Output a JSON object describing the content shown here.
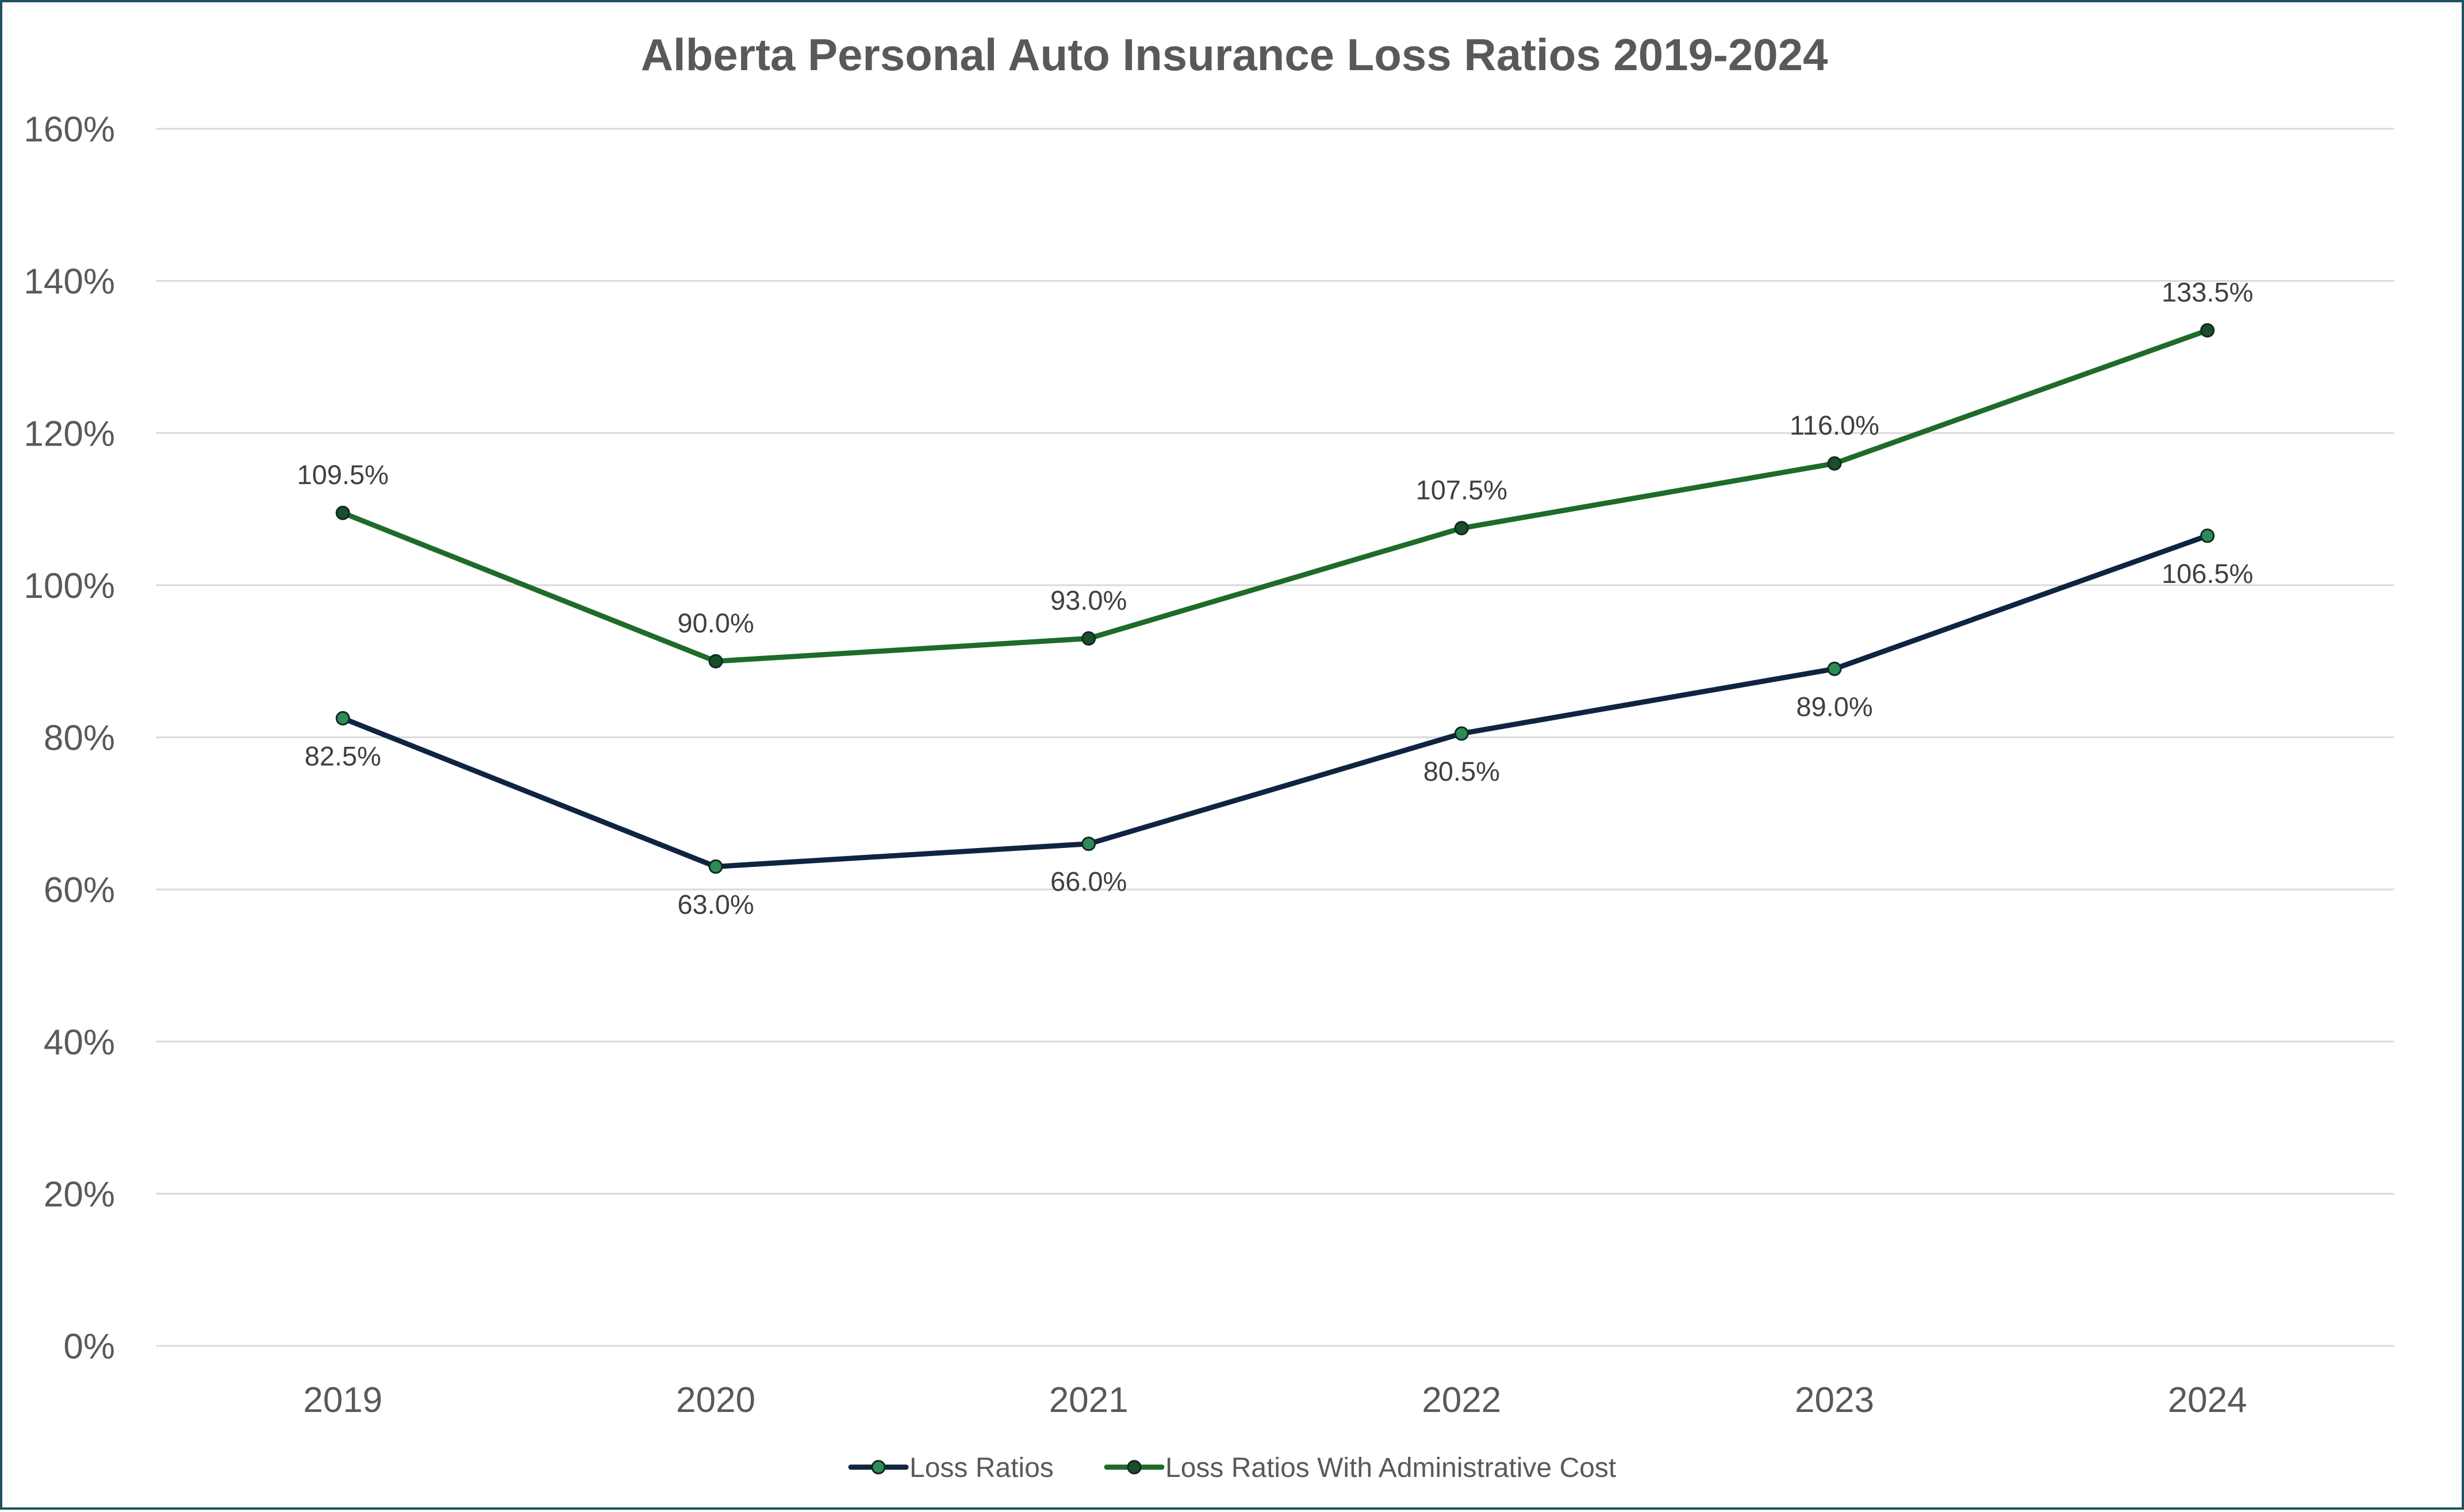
{
  "chart_data": {
    "type": "line",
    "title": "Alberta Personal Auto Insurance Loss Ratios 2019-2024",
    "xlabel": "",
    "ylabel": "",
    "categories": [
      "2019",
      "2020",
      "2021",
      "2022",
      "2023",
      "2024"
    ],
    "ylim": [
      0,
      160
    ],
    "yticks": [
      0,
      20,
      40,
      60,
      80,
      100,
      120,
      140,
      160
    ],
    "ytick_labels": [
      "0%",
      "20%",
      "40%",
      "60%",
      "80%",
      "100%",
      "120%",
      "140%",
      "160%"
    ],
    "grid": true,
    "legend_position": "bottom",
    "series": [
      {
        "name": "Loss Ratios",
        "values": [
          82.5,
          63.0,
          66.0,
          80.5,
          89.0,
          106.5
        ],
        "labels": [
          "82.5%",
          "63.0%",
          "66.0%",
          "80.5%",
          "89.0%",
          "106.5%"
        ],
        "label_position": "below",
        "color": "#0f2440",
        "marker_color": "#2e8b57"
      },
      {
        "name": "Loss Ratios With Administrative Cost",
        "values": [
          109.5,
          90.0,
          93.0,
          107.5,
          116.0,
          133.5
        ],
        "labels": [
          "109.5%",
          "90.0%",
          "93.0%",
          "107.5%",
          "116.0%",
          "133.5%"
        ],
        "label_position": "above",
        "color": "#1e6b2a",
        "marker_color": "#1a4d2e"
      }
    ]
  }
}
